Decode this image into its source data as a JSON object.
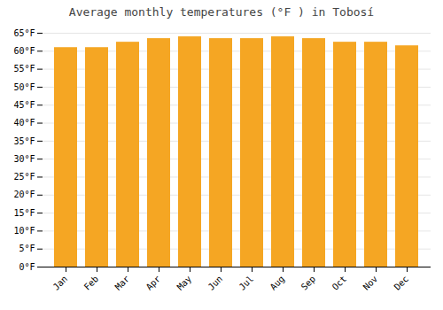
{
  "chart_data": {
    "type": "bar",
    "title": "Average monthly temperatures (°F ) in Tobosí",
    "categories": [
      "Jan",
      "Feb",
      "Mar",
      "Apr",
      "May",
      "Jun",
      "Jul",
      "Aug",
      "Sep",
      "Oct",
      "Nov",
      "Dec"
    ],
    "values": [
      61.0,
      61.0,
      62.5,
      63.5,
      64.0,
      63.5,
      63.5,
      64.0,
      63.5,
      62.5,
      62.5,
      61.5
    ],
    "color": "#F5A623",
    "ylim": [
      0,
      65
    ],
    "yticks": [
      {
        "value": 0,
        "label": "0°F"
      },
      {
        "value": 5,
        "label": "5°F"
      },
      {
        "value": 10,
        "label": "10°F"
      },
      {
        "value": 15,
        "label": "15°F"
      },
      {
        "value": 20,
        "label": "20°F"
      },
      {
        "value": 25,
        "label": "25°F"
      },
      {
        "value": 30,
        "label": "30°F"
      },
      {
        "value": 35,
        "label": "35°F"
      },
      {
        "value": 40,
        "label": "40°F"
      },
      {
        "value": 45,
        "label": "45°F"
      },
      {
        "value": 50,
        "label": "50°F"
      },
      {
        "value": 55,
        "label": "55°F"
      },
      {
        "value": 60,
        "label": "60°F"
      },
      {
        "value": 65,
        "label": "65°F"
      }
    ],
    "grid": true
  }
}
